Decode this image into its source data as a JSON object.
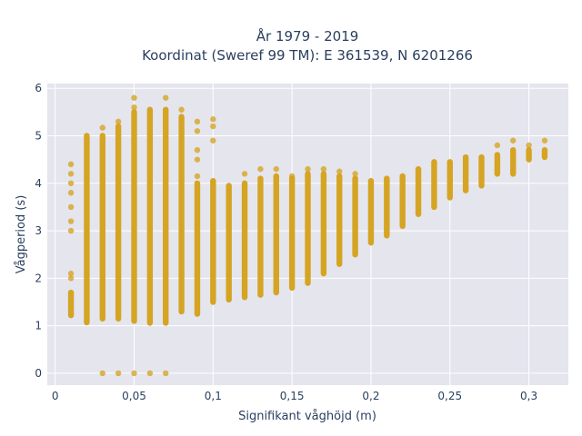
{
  "chart_data": {
    "type": "scatter",
    "title_line1": "År 1979 - 2019",
    "title_line2": "Koordinat (Sweref 99 TM): E 361539, N 6201266",
    "xlabel": "Signifikant våghöjd (m)",
    "ylabel": "Vågperiod (s)",
    "xlim": [
      -0.005,
      0.325
    ],
    "ylim": [
      -0.25,
      6.1
    ],
    "x_ticks": [
      {
        "value": 0,
        "label": "0"
      },
      {
        "value": 0.05,
        "label": "0,05"
      },
      {
        "value": 0.1,
        "label": "0,1"
      },
      {
        "value": 0.15,
        "label": "0,15"
      },
      {
        "value": 0.2,
        "label": "0,2"
      },
      {
        "value": 0.25,
        "label": "0,25"
      },
      {
        "value": 0.3,
        "label": "0,3"
      }
    ],
    "y_ticks": [
      {
        "value": 0,
        "label": "0"
      },
      {
        "value": 1,
        "label": "1"
      },
      {
        "value": 2,
        "label": "2"
      },
      {
        "value": 3,
        "label": "3"
      },
      {
        "value": 4,
        "label": "4"
      },
      {
        "value": 5,
        "label": "5"
      },
      {
        "value": 6,
        "label": "6"
      }
    ],
    "grid": true,
    "colors": {
      "marker": "#D4A017",
      "plot_bg": "#E5E5EE",
      "grid": "#ffffff"
    },
    "columns": [
      {
        "x": 0.01,
        "y_min": 1.22,
        "y_max": 1.7,
        "extra": [
          2.0,
          2.1,
          3.0,
          3.2,
          3.5,
          3.8,
          4.0,
          4.2,
          4.4
        ]
      },
      {
        "x": 0.02,
        "y_min": 1.07,
        "y_max": 5.0,
        "extra": []
      },
      {
        "x": 0.03,
        "y_min": 1.15,
        "y_max": 5.0,
        "extra": [
          5.17,
          0
        ]
      },
      {
        "x": 0.04,
        "y_min": 1.15,
        "y_max": 5.2,
        "extra": [
          5.3,
          0
        ]
      },
      {
        "x": 0.05,
        "y_min": 1.1,
        "y_max": 5.5,
        "extra": [
          5.6,
          5.8,
          0
        ]
      },
      {
        "x": 0.06,
        "y_min": 1.06,
        "y_max": 5.55,
        "extra": [
          0
        ]
      },
      {
        "x": 0.07,
        "y_min": 1.06,
        "y_max": 5.55,
        "extra": [
          5.8,
          0
        ]
      },
      {
        "x": 0.08,
        "y_min": 1.3,
        "y_max": 5.4,
        "extra": [
          5.55
        ]
      },
      {
        "x": 0.09,
        "y_min": 1.25,
        "y_max": 4.0,
        "extra": [
          4.15,
          4.5,
          4.7,
          5.1,
          5.3
        ]
      },
      {
        "x": 0.1,
        "y_min": 1.5,
        "y_max": 4.05,
        "extra": [
          4.9,
          5.2,
          5.35
        ]
      },
      {
        "x": 0.11,
        "y_min": 1.55,
        "y_max": 3.95,
        "extra": []
      },
      {
        "x": 0.12,
        "y_min": 1.6,
        "y_max": 4.0,
        "extra": [
          4.2
        ]
      },
      {
        "x": 0.13,
        "y_min": 1.65,
        "y_max": 4.1,
        "extra": [
          4.3
        ]
      },
      {
        "x": 0.14,
        "y_min": 1.7,
        "y_max": 4.15,
        "extra": [
          4.3
        ]
      },
      {
        "x": 0.15,
        "y_min": 1.8,
        "y_max": 4.1,
        "extra": [
          4.15
        ]
      },
      {
        "x": 0.16,
        "y_min": 1.9,
        "y_max": 4.2,
        "extra": [
          4.3
        ]
      },
      {
        "x": 0.17,
        "y_min": 2.1,
        "y_max": 4.2,
        "extra": [
          4.3
        ]
      },
      {
        "x": 0.18,
        "y_min": 2.3,
        "y_max": 4.15,
        "extra": [
          4.25
        ]
      },
      {
        "x": 0.19,
        "y_min": 2.5,
        "y_max": 4.1,
        "extra": [
          4.2
        ]
      },
      {
        "x": 0.2,
        "y_min": 2.75,
        "y_max": 4.05,
        "extra": []
      },
      {
        "x": 0.21,
        "y_min": 2.9,
        "y_max": 4.1,
        "extra": []
      },
      {
        "x": 0.22,
        "y_min": 3.1,
        "y_max": 4.15,
        "extra": []
      },
      {
        "x": 0.23,
        "y_min": 3.35,
        "y_max": 4.3,
        "extra": []
      },
      {
        "x": 0.24,
        "y_min": 3.5,
        "y_max": 4.45,
        "extra": []
      },
      {
        "x": 0.25,
        "y_min": 3.7,
        "y_max": 4.45,
        "extra": []
      },
      {
        "x": 0.26,
        "y_min": 3.85,
        "y_max": 4.55,
        "extra": []
      },
      {
        "x": 0.27,
        "y_min": 3.95,
        "y_max": 4.55,
        "extra": []
      },
      {
        "x": 0.28,
        "y_min": 4.2,
        "y_max": 4.6,
        "extra": [
          4.8
        ]
      },
      {
        "x": 0.29,
        "y_min": 4.2,
        "y_max": 4.7,
        "extra": [
          4.9
        ]
      },
      {
        "x": 0.3,
        "y_min": 4.5,
        "y_max": 4.7,
        "extra": [
          4.8
        ]
      },
      {
        "x": 0.31,
        "y_min": 4.55,
        "y_max": 4.7,
        "extra": [
          4.9
        ]
      }
    ]
  }
}
